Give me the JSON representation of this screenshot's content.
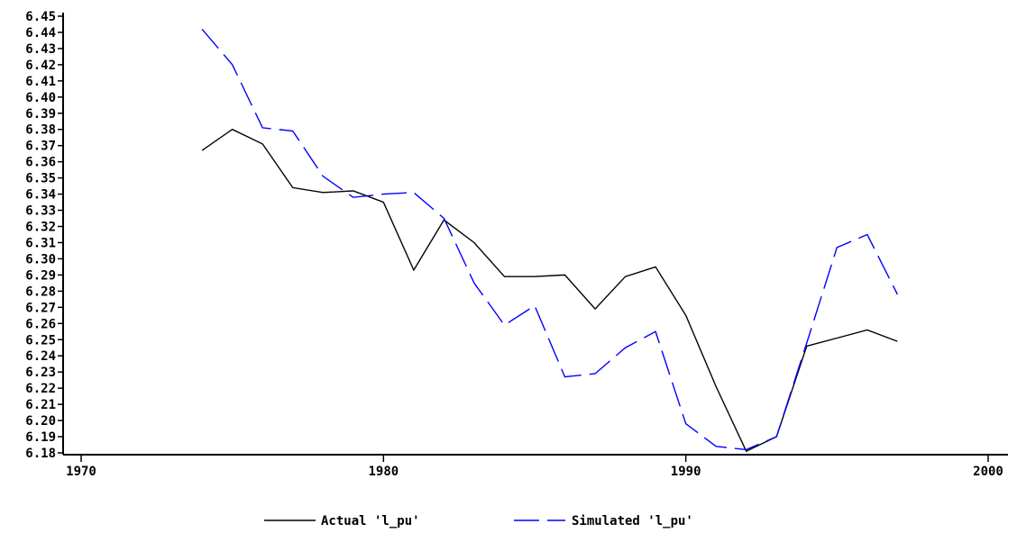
{
  "chart_data": {
    "type": "line",
    "title": "",
    "xlabel": "",
    "ylabel": "",
    "xlim": [
      1970,
      2000
    ],
    "ylim": [
      6.18,
      6.45
    ],
    "x_ticks": [
      "1970",
      "1980",
      "1990",
      "2000"
    ],
    "y_ticks": [
      "6.18",
      "6.19",
      "6.20",
      "6.21",
      "6.22",
      "6.23",
      "6.24",
      "6.25",
      "6.26",
      "6.27",
      "6.28",
      "6.29",
      "6.30",
      "6.31",
      "6.32",
      "6.33",
      "6.34",
      "6.35",
      "6.36",
      "6.37",
      "6.38",
      "6.39",
      "6.40",
      "6.41",
      "6.42",
      "6.43",
      "6.44",
      "6.45"
    ],
    "grid": false,
    "legend_position": "bottom",
    "x": [
      1974,
      1975,
      1976,
      1977,
      1978,
      1979,
      1980,
      1981,
      1982,
      1983,
      1984,
      1985,
      1986,
      1987,
      1988,
      1989,
      1990,
      1991,
      1992,
      1993,
      1994,
      1995,
      1996,
      1997
    ],
    "series": [
      {
        "name": "Actual 'l_pu'",
        "color": "#000000",
        "dash": "solid",
        "values": [
          6.367,
          6.38,
          6.371,
          6.344,
          6.341,
          6.342,
          6.335,
          6.293,
          6.324,
          6.31,
          6.289,
          6.289,
          6.29,
          6.269,
          6.289,
          6.295,
          6.265,
          6.221,
          6.181,
          6.19,
          6.246,
          6.251,
          6.256,
          6.249
        ]
      },
      {
        "name": "Simulated 'l_pu'",
        "color": "#0000ff",
        "dash": "dashed",
        "values": [
          6.442,
          6.42,
          6.381,
          6.379,
          6.351,
          6.338,
          6.34,
          6.341,
          6.325,
          6.285,
          6.259,
          6.271,
          6.227,
          6.229,
          6.245,
          6.255,
          6.198,
          6.184,
          6.182,
          6.19,
          6.248,
          6.307,
          6.315,
          6.278
        ]
      }
    ]
  }
}
